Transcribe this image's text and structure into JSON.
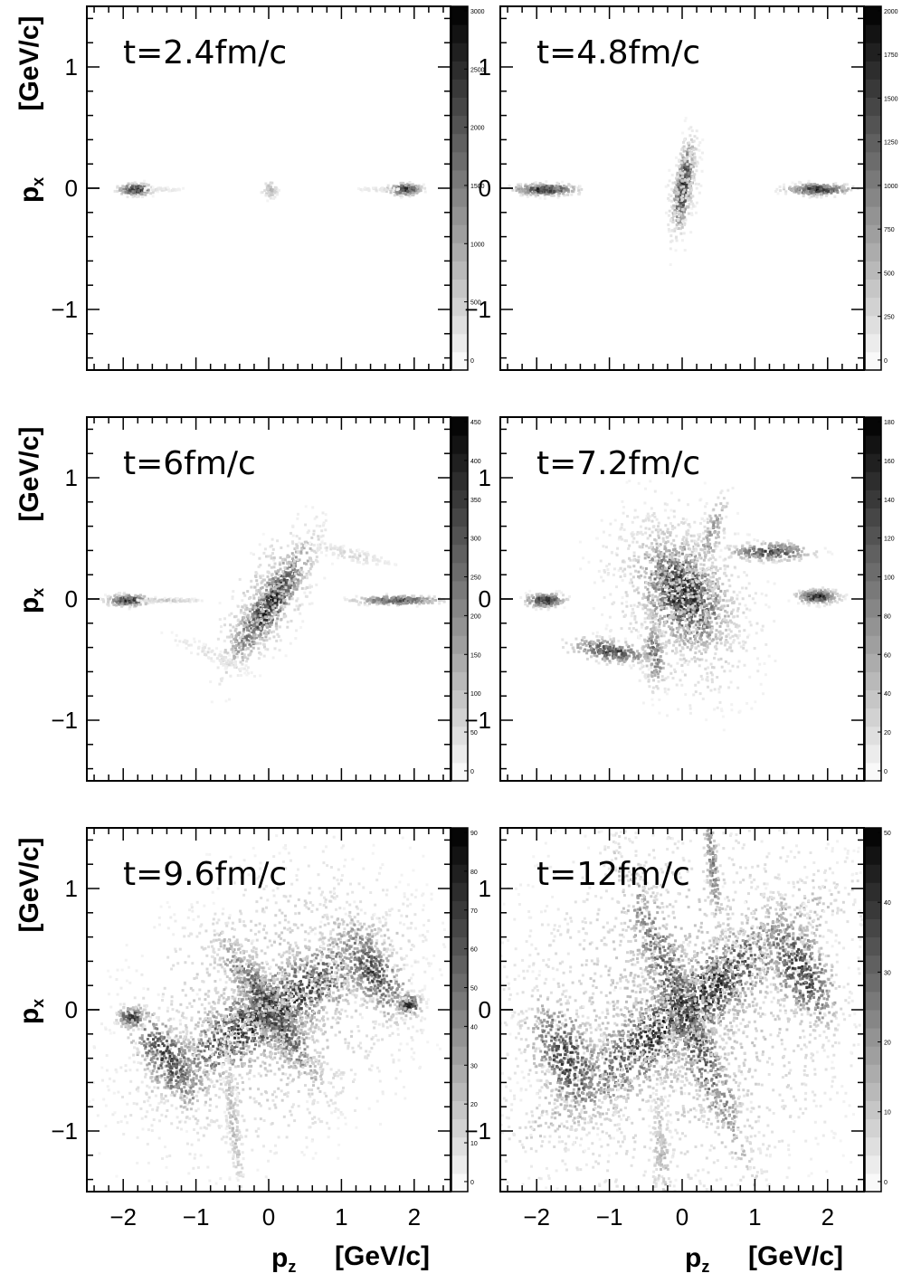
{
  "chart_data": {
    "type": "heatmap",
    "colormap": {
      "low": "#ffffff",
      "high": "#000000"
    },
    "x_axis": {
      "label_symbol": "p",
      "label_sub": "z",
      "label_unit": "[GeV/c]",
      "ticks": [
        "−2",
        "−1",
        "0",
        "1",
        "2"
      ],
      "tick_values": [
        -2,
        -1,
        0,
        1,
        2
      ],
      "xlim": [
        -2.5,
        2.5
      ]
    },
    "y_axis": {
      "label_symbol": "p",
      "label_sub": "x",
      "label_unit": "[GeV/c]",
      "ticks": [
        "1",
        "0",
        "−1"
      ],
      "tick_values": [
        1,
        0,
        -1
      ],
      "ylim": [
        -1.5,
        1.5
      ]
    },
    "panels": [
      {
        "label": "t=2.4fm/c",
        "scale_max": 3000,
        "scale_labels": [
          "3000",
          "2500",
          "2000",
          "1500",
          "1000",
          "500",
          "0"
        ],
        "blobs": [
          {
            "z": -1.85,
            "x": 0.0,
            "sz": 0.12,
            "sx": 0.025,
            "intensity": 1.0,
            "angle": 0,
            "count": 200
          },
          {
            "z": 1.85,
            "x": 0.0,
            "sz": 0.12,
            "sx": 0.025,
            "intensity": 1.0,
            "angle": 0,
            "count": 200
          },
          {
            "z": 0.0,
            "x": 0.0,
            "sz": 0.06,
            "sx": 0.04,
            "intensity": 0.35,
            "angle": 0,
            "count": 60
          },
          {
            "z": -1.5,
            "x": 0.0,
            "sz": 0.2,
            "sx": 0.01,
            "intensity": 0.15,
            "angle": 0,
            "count": 40
          },
          {
            "z": 1.5,
            "x": 0.0,
            "sz": 0.2,
            "sx": 0.01,
            "intensity": 0.15,
            "angle": 0,
            "count": 40
          }
        ]
      },
      {
        "label": "t=4.8fm/c",
        "scale_max": 2000,
        "scale_labels": [
          "2000",
          "1750",
          "1500",
          "1250",
          "1000",
          "750",
          "500",
          "250",
          "0"
        ],
        "blobs": [
          {
            "z": -1.9,
            "x": 0.0,
            "sz": 0.22,
            "sx": 0.025,
            "intensity": 1.0,
            "angle": 0,
            "count": 260
          },
          {
            "z": 1.85,
            "x": 0.0,
            "sz": 0.22,
            "sx": 0.025,
            "intensity": 1.0,
            "angle": 0,
            "count": 260
          },
          {
            "z": 0.0,
            "x": 0.02,
            "sz": 0.06,
            "sx": 0.2,
            "intensity": 1.0,
            "angle": -15,
            "count": 420
          },
          {
            "z": 0.0,
            "x": 0.0,
            "sz": 0.12,
            "sx": 0.3,
            "intensity": 0.25,
            "angle": -15,
            "count": 160
          }
        ]
      },
      {
        "label": "t=6fm/c",
        "scale_max": 500,
        "scale_labels": [
          "450",
          "400",
          "350",
          "300",
          "250",
          "200",
          "150",
          "100",
          "50",
          "0"
        ],
        "blobs": [
          {
            "z": -1.95,
            "x": 0.0,
            "sz": 0.15,
            "sx": 0.025,
            "intensity": 1.0,
            "angle": 0,
            "count": 220
          },
          {
            "z": -1.4,
            "x": 0.0,
            "sz": 0.25,
            "sx": 0.008,
            "intensity": 0.3,
            "angle": 0,
            "count": 80
          },
          {
            "z": 1.75,
            "x": 0.0,
            "sz": 0.3,
            "sx": 0.02,
            "intensity": 0.85,
            "angle": 0,
            "count": 240
          },
          {
            "z": 0.0,
            "x": -0.03,
            "sz": 0.1,
            "sx": 0.38,
            "intensity": 1.0,
            "angle": -50,
            "count": 700
          },
          {
            "z": 0.0,
            "x": 0.0,
            "sz": 0.22,
            "sx": 0.5,
            "intensity": 0.35,
            "angle": -50,
            "count": 300
          },
          {
            "z": 1.1,
            "x": 0.38,
            "sz": 0.35,
            "sx": 0.03,
            "intensity": 0.2,
            "angle": -8,
            "count": 120
          },
          {
            "z": -0.8,
            "x": -0.45,
            "sz": 0.4,
            "sx": 0.04,
            "intensity": 0.15,
            "angle": -15,
            "count": 100
          }
        ]
      },
      {
        "label": "t=7.2fm/c",
        "scale_max": 180,
        "scale_labels": [
          "180",
          "160",
          "140",
          "120",
          "100",
          "80",
          "60",
          "40",
          "20",
          "0"
        ],
        "blobs": [
          {
            "z": -1.9,
            "x": 0.0,
            "sz": 0.14,
            "sx": 0.03,
            "intensity": 1.0,
            "angle": 0,
            "count": 220
          },
          {
            "z": 1.85,
            "x": 0.03,
            "sz": 0.15,
            "sx": 0.03,
            "intensity": 1.0,
            "angle": 0,
            "count": 220
          },
          {
            "z": 0.0,
            "x": 0.05,
            "sz": 0.35,
            "sx": 0.22,
            "intensity": 1.0,
            "angle": -25,
            "count": 1100
          },
          {
            "z": 0.0,
            "x": 0.0,
            "sz": 0.65,
            "sx": 0.45,
            "intensity": 0.3,
            "angle": -20,
            "count": 800
          },
          {
            "z": 1.2,
            "x": 0.4,
            "sz": 0.3,
            "sx": 0.04,
            "intensity": 0.85,
            "angle": 0,
            "count": 240
          },
          {
            "z": -1.0,
            "x": -0.42,
            "sz": 0.3,
            "sx": 0.05,
            "intensity": 0.85,
            "angle": -5,
            "count": 240
          },
          {
            "z": -0.4,
            "x": -0.45,
            "sz": 0.08,
            "sx": 0.15,
            "intensity": 0.7,
            "angle": 10,
            "count": 140
          },
          {
            "z": 0.4,
            "x": 0.55,
            "sz": 0.08,
            "sx": 0.2,
            "intensity": 0.5,
            "angle": -30,
            "count": 120
          }
        ]
      },
      {
        "label": "t=9.6fm/c",
        "scale_max": 90,
        "scale_labels": [
          "90",
          "80",
          "70",
          "60",
          "50",
          "40",
          "30",
          "20",
          "10",
          "0"
        ],
        "blobs": [
          {
            "z": -1.9,
            "x": -0.05,
            "sz": 0.1,
            "sx": 0.05,
            "intensity": 1.0,
            "angle": 0,
            "count": 120
          },
          {
            "z": 1.9,
            "x": 0.05,
            "sz": 0.1,
            "sx": 0.05,
            "intensity": 1.0,
            "angle": 0,
            "count": 120
          },
          {
            "z": 0.0,
            "x": 0.0,
            "sz": 0.9,
            "sx": 0.18,
            "intensity": 1.0,
            "angle": 20,
            "count": 1400
          },
          {
            "z": 0.0,
            "x": 0.0,
            "sz": 0.5,
            "sx": 0.12,
            "intensity": 0.9,
            "angle": -40,
            "count": 700
          },
          {
            "z": 0.0,
            "x": 0.0,
            "sz": 1.2,
            "sx": 0.65,
            "intensity": 0.3,
            "angle": 15,
            "count": 1600
          },
          {
            "z": 1.4,
            "x": 0.35,
            "sz": 0.35,
            "sx": 0.15,
            "intensity": 0.85,
            "angle": -35,
            "count": 400
          },
          {
            "z": -1.4,
            "x": -0.4,
            "sz": 0.35,
            "sx": 0.15,
            "intensity": 0.85,
            "angle": -35,
            "count": 400
          },
          {
            "z": -0.5,
            "x": -0.9,
            "sz": 0.05,
            "sx": 0.35,
            "intensity": 0.35,
            "angle": 10,
            "count": 180
          }
        ]
      },
      {
        "label": "t=12fm/c",
        "scale_max": 60,
        "scale_labels": [
          "50",
          "40",
          "30",
          "20",
          "10",
          "0"
        ],
        "blobs": [
          {
            "z": 0.0,
            "x": 0.0,
            "sz": 1.1,
            "sx": 0.2,
            "intensity": 1.0,
            "angle": 25,
            "count": 1600
          },
          {
            "z": 0.0,
            "x": 0.0,
            "sz": 0.8,
            "sx": 0.15,
            "intensity": 0.9,
            "angle": -55,
            "count": 900
          },
          {
            "z": 0.0,
            "x": 0.0,
            "sz": 1.5,
            "sx": 0.9,
            "intensity": 0.3,
            "angle": 10,
            "count": 2400
          },
          {
            "z": 1.6,
            "x": 0.35,
            "sz": 0.35,
            "sx": 0.18,
            "intensity": 0.9,
            "angle": -40,
            "count": 450
          },
          {
            "z": -1.6,
            "x": -0.4,
            "sz": 0.35,
            "sx": 0.2,
            "intensity": 0.9,
            "angle": -40,
            "count": 450
          },
          {
            "z": 0.4,
            "x": 1.2,
            "sz": 0.05,
            "sx": 0.3,
            "intensity": 0.6,
            "angle": 10,
            "count": 150
          },
          {
            "z": -0.3,
            "x": -1.2,
            "sz": 0.08,
            "sx": 0.35,
            "intensity": 0.35,
            "angle": 5,
            "count": 200
          }
        ]
      }
    ]
  }
}
